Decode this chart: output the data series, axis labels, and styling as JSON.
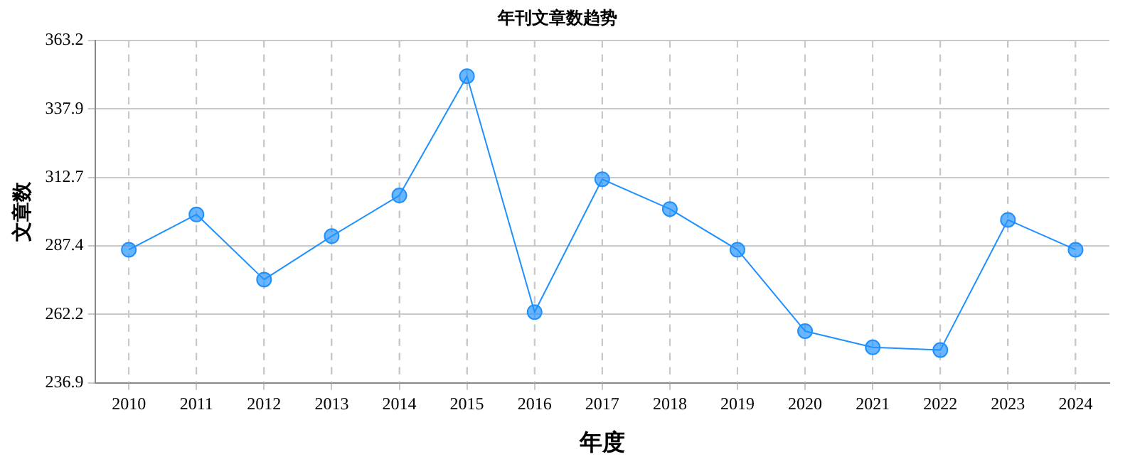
{
  "chart_data": {
    "type": "line",
    "title": "年刊文章数趋势",
    "xlabel": "年度",
    "ylabel": "文章数",
    "categories": [
      "2010",
      "2011",
      "2012",
      "2013",
      "2014",
      "2015",
      "2016",
      "2017",
      "2018",
      "2019",
      "2020",
      "2021",
      "2022",
      "2023",
      "2024"
    ],
    "series": [
      {
        "color": "#1e90ff",
        "values": [
          286,
          299,
          275,
          291,
          306,
          350,
          263,
          312,
          301,
          286,
          256,
          250,
          249,
          297,
          286
        ]
      }
    ],
    "ylim": [
      236.9,
      363.2
    ],
    "yticks": [
      236.9,
      262.2,
      287.4,
      312.7,
      337.9,
      363.2
    ],
    "grid": true,
    "marker": "circle",
    "line_style": "solid",
    "legend": false
  }
}
